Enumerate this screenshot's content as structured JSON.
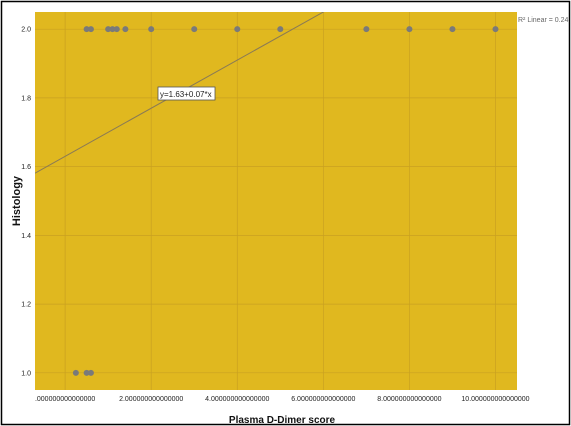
{
  "chart_data": {
    "type": "scatter",
    "xlabel": "Plasma D-Dimer score",
    "ylabel": "Histology",
    "xlim": [
      -0.7,
      10.5
    ],
    "ylim": [
      0.95,
      2.05
    ],
    "x_ticks": [
      0,
      2,
      4,
      6,
      8,
      10
    ],
    "x_tick_labels": [
      ".000000000000000",
      "2.000000000000000",
      "4.000000000000000",
      "6.000000000000000",
      "8.000000000000000",
      "10.000000000000000"
    ],
    "y_ticks": [
      1.0,
      1.2,
      1.4,
      1.6,
      1.8,
      2.0
    ],
    "y_tick_labels": [
      "1.0",
      "1.2",
      "1.4",
      "1.6",
      "1.8",
      "2.0"
    ],
    "grid": true,
    "points": [
      {
        "x": 0.25,
        "y": 1.0
      },
      {
        "x": 0.5,
        "y": 1.0
      },
      {
        "x": 0.6,
        "y": 1.0
      },
      {
        "x": 0.5,
        "y": 2.0
      },
      {
        "x": 0.6,
        "y": 2.0
      },
      {
        "x": 1.0,
        "y": 2.0
      },
      {
        "x": 1.1,
        "y": 2.0
      },
      {
        "x": 1.2,
        "y": 2.0
      },
      {
        "x": 1.4,
        "y": 2.0
      },
      {
        "x": 2.0,
        "y": 2.0
      },
      {
        "x": 3.0,
        "y": 2.0
      },
      {
        "x": 4.0,
        "y": 2.0
      },
      {
        "x": 5.0,
        "y": 2.0
      },
      {
        "x": 7.0,
        "y": 2.0
      },
      {
        "x": 8.0,
        "y": 2.0
      },
      {
        "x": 9.0,
        "y": 2.0
      },
      {
        "x": 10.0,
        "y": 2.0
      }
    ],
    "fit_line": {
      "intercept": 1.63,
      "slope": 0.07
    },
    "fit_equation_label": "y=1.63+0.07*x",
    "r2_label": "R² Linear = 0.24",
    "colors": {
      "plot_background": "#e0b81f",
      "grid": "#c9a020",
      "points": "#7a7a7a",
      "fit_line": "#8a7a55",
      "frame": "#000000"
    }
  }
}
